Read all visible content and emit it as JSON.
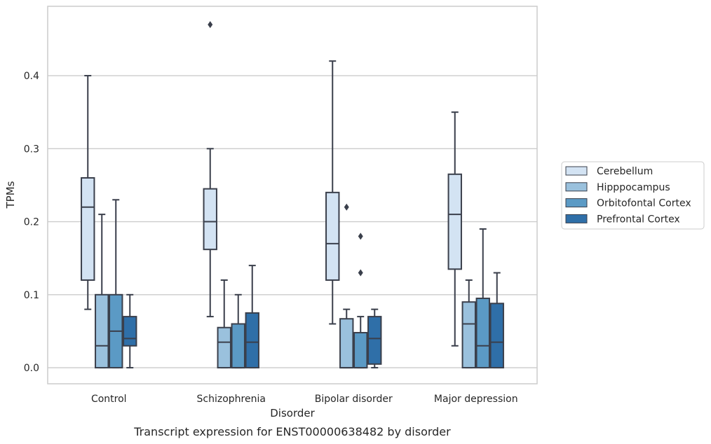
{
  "caption": "Transcript expression for ENST00000638482 by disorder",
  "chart_data": {
    "type": "boxplot",
    "xlabel": "Disorder",
    "ylabel": "TPMs",
    "ylim": [
      -0.022,
      0.495
    ],
    "yticks": [
      "0.0",
      "0.1",
      "0.2",
      "0.3",
      "0.4"
    ],
    "grid": "horizontal",
    "legend_position": "right",
    "categories": [
      "Control",
      "Schizophrenia",
      "Bipolar disorder",
      "Major depression"
    ],
    "series": [
      {
        "name": "Cerebellum",
        "color": "#d3e3f3",
        "boxes": [
          {
            "whislo": 0.08,
            "q1": 0.12,
            "med": 0.22,
            "q3": 0.26,
            "whishi": 0.4,
            "fliers": []
          },
          {
            "whislo": 0.07,
            "q1": 0.162,
            "med": 0.2,
            "q3": 0.245,
            "whishi": 0.3,
            "fliers": [
              0.47
            ]
          },
          {
            "whislo": 0.06,
            "q1": 0.12,
            "med": 0.17,
            "q3": 0.24,
            "whishi": 0.42,
            "fliers": []
          },
          {
            "whislo": 0.03,
            "q1": 0.135,
            "med": 0.21,
            "q3": 0.265,
            "whishi": 0.35,
            "fliers": []
          }
        ]
      },
      {
        "name": "Hipppocampus",
        "color": "#9ac1dd",
        "boxes": [
          {
            "whislo": 0.0,
            "q1": 0.0,
            "med": 0.03,
            "q3": 0.1,
            "whishi": 0.21,
            "fliers": []
          },
          {
            "whislo": 0.0,
            "q1": 0.0,
            "med": 0.035,
            "q3": 0.055,
            "whishi": 0.12,
            "fliers": []
          },
          {
            "whislo": 0.0,
            "q1": 0.0,
            "med": 0.0,
            "q3": 0.067,
            "whishi": 0.08,
            "fliers": [
              0.22
            ]
          },
          {
            "whislo": 0.0,
            "q1": 0.0,
            "med": 0.06,
            "q3": 0.09,
            "whishi": 0.12,
            "fliers": []
          }
        ]
      },
      {
        "name": "Orbitofontal Cortex",
        "color": "#5b9ac5",
        "boxes": [
          {
            "whislo": 0.0,
            "q1": 0.0,
            "med": 0.05,
            "q3": 0.1,
            "whishi": 0.23,
            "fliers": []
          },
          {
            "whislo": 0.0,
            "q1": 0.0,
            "med": 0.0,
            "q3": 0.06,
            "whishi": 0.1,
            "fliers": []
          },
          {
            "whislo": 0.0,
            "q1": 0.0,
            "med": 0.0,
            "q3": 0.048,
            "whishi": 0.07,
            "fliers": [
              0.18,
              0.13
            ]
          },
          {
            "whislo": 0.0,
            "q1": 0.0,
            "med": 0.03,
            "q3": 0.095,
            "whishi": 0.19,
            "fliers": []
          }
        ]
      },
      {
        "name": "Prefrontal Cortex",
        "color": "#2f6fa8",
        "boxes": [
          {
            "whislo": 0.0,
            "q1": 0.03,
            "med": 0.04,
            "q3": 0.07,
            "whishi": 0.1,
            "fliers": []
          },
          {
            "whislo": 0.0,
            "q1": 0.0,
            "med": 0.035,
            "q3": 0.075,
            "whishi": 0.14,
            "fliers": []
          },
          {
            "whislo": 0.0,
            "q1": 0.005,
            "med": 0.04,
            "q3": 0.07,
            "whishi": 0.08,
            "fliers": []
          },
          {
            "whislo": 0.0,
            "q1": 0.0,
            "med": 0.035,
            "q3": 0.088,
            "whishi": 0.13,
            "fliers": []
          }
        ]
      }
    ]
  }
}
